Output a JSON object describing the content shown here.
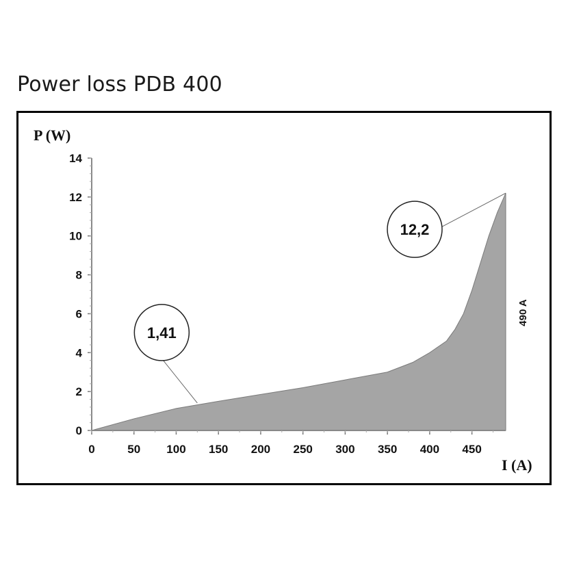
{
  "page": {
    "title": "Power loss PDB 400"
  },
  "chart_data": {
    "type": "area",
    "xlabel": "I (A)",
    "ylabel": "P (W)",
    "xlim": [
      0,
      490
    ],
    "ylim": [
      0,
      14
    ],
    "x_ticks": [
      "0",
      "50",
      "100",
      "150",
      "200",
      "250",
      "300",
      "350",
      "400",
      "450"
    ],
    "y_ticks": [
      "0",
      "2",
      "4",
      "6",
      "8",
      "10",
      "12",
      "14"
    ],
    "x": [
      0,
      50,
      100,
      150,
      200,
      250,
      300,
      350,
      380,
      400,
      420,
      430,
      440,
      450,
      460,
      470,
      480,
      490
    ],
    "y": [
      0,
      0.6,
      1.13,
      1.5,
      1.85,
      2.2,
      2.6,
      3.0,
      3.5,
      4.0,
      4.6,
      5.2,
      6.0,
      7.2,
      8.6,
      10.0,
      11.2,
      12.2
    ],
    "annotations": [
      {
        "text": "1,41",
        "x": 125,
        "y": 1.41
      },
      {
        "text": "12,2",
        "x": 490,
        "y": 12.2
      }
    ],
    "side_note": "490 A",
    "fill_color": "#a5a5a5",
    "edge_color": "#7a7a7a",
    "grid": false,
    "legend": "none"
  }
}
